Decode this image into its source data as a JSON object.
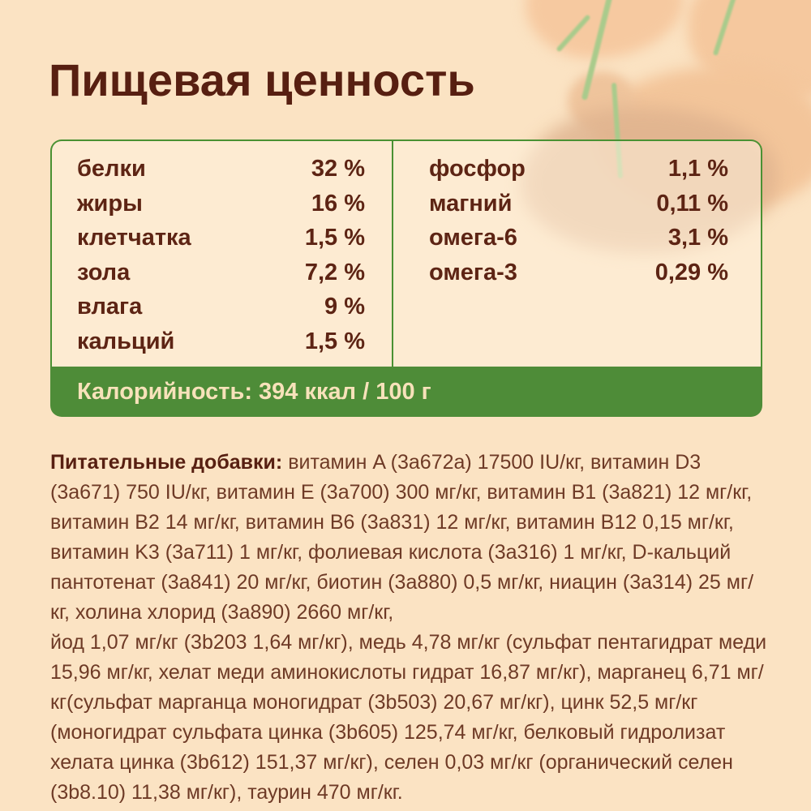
{
  "page": {
    "title": "Пищевая ценность"
  },
  "nutrition_table": {
    "left_column": [
      {
        "label": "белки",
        "value": "32 %"
      },
      {
        "label": "жиры",
        "value": "16 %"
      },
      {
        "label": "клетчатка",
        "value": "1,5 %"
      },
      {
        "label": "зола",
        "value": "7,2 %"
      },
      {
        "label": "влага",
        "value": "9 %"
      },
      {
        "label": "кальций",
        "value": "1,5 %"
      }
    ],
    "right_column": [
      {
        "label": "фосфор",
        "value": "1,1 %"
      },
      {
        "label": "магний",
        "value": "0,11 %"
      },
      {
        "label": "омега-6",
        "value": "3,1 %"
      },
      {
        "label": "омега-3",
        "value": "0,29 %"
      }
    ],
    "calories_line": "Калорийность: 394 ккал / 100 г"
  },
  "additives": {
    "heading": "Питательные добавки: ",
    "text_line1": "витамин A (3a672a) 17500 IU/кг, витамин D3 (3a671) 750 IU/кг, витамин E (3a700) 300 мг/кг, витамин B1 (3a821) 12 мг/кг, витамин B2 14 мг/кг, витамин B6 (3a831) 12 мг/кг, витамин B12 0,15 мг/кг, витамин K3 (3a711) 1 мг/кг, фолиевая кислота (3a316) 1 мг/кг, D-кальций пантотенат (3a841) 20 мг/кг, биотин (3a880) 0,5 мг/кг, ниацин (3a314) 25 мг/кг, холина хлорид (3a890) 2660 мг/кг,",
    "text_line2": "йод 1,07 мг/кг (3b203 1,64 мг/кг), медь 4,78 мг/кг (сульфат пентагидрат меди 15,96 мг/кг, хелат меди аминокислоты гидрат 16,87 мг/кг), марганец 6,71 мг/кг(сульфат марганца моногидрат (3b503) 20,67 мг/кг), цинк 52,5 мг/кг (моногидрат сульфата цинка (3b605) 125,74 мг/кг, белковый гидролизат хелата цинка (3b612) 151,37 мг/кг), селен 0,03 мг/кг (органический селен (3b8.10) 11,38 мг/кг), таурин 470 мг/кг."
  },
  "colors": {
    "background": "#fbe3c3",
    "card_border_green": "#4a9133",
    "footer_green": "#4e8c38",
    "footer_text": "#f7e2ba",
    "title_text": "#571f11",
    "table_text": "#5d2414",
    "paragraph_text": "#6e3a26",
    "flower_orange": "#f5c89e",
    "flower_tan": "#deb28e",
    "stem_green": "#a9cb8c"
  }
}
